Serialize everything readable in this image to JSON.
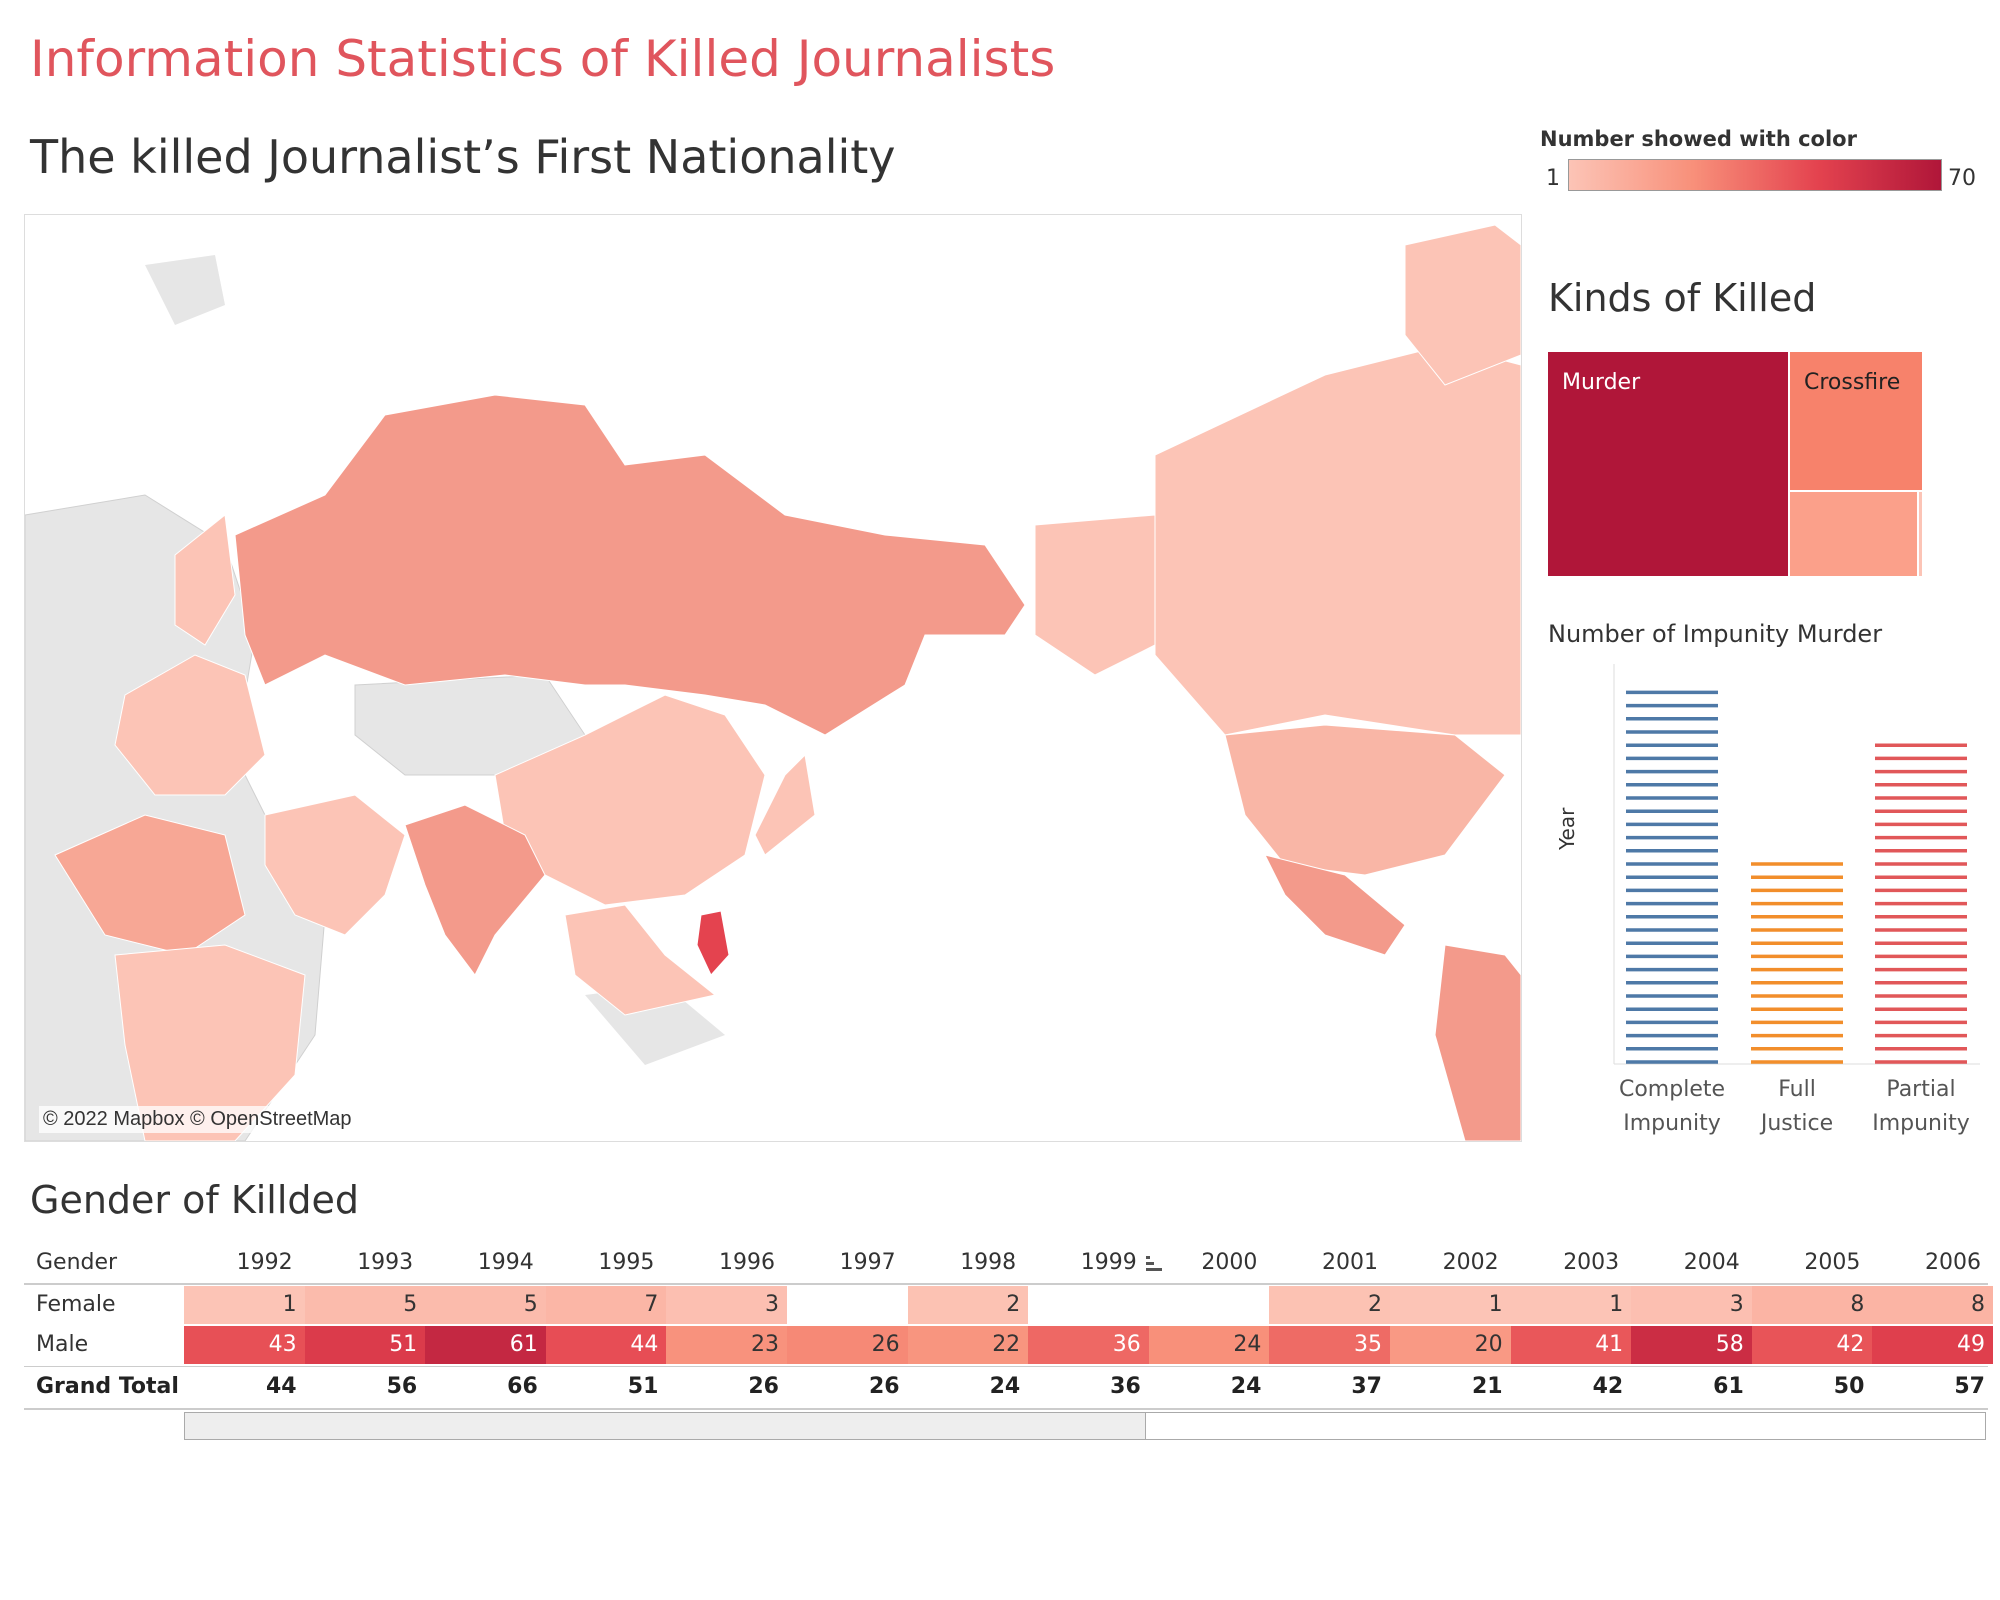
{
  "title": "Information Statistics of Killed Journalists",
  "map": {
    "title": "The killed Journalist’s First Nationality",
    "credit": "© 2022 Mapbox © OpenStreetMap"
  },
  "legend": {
    "title": "Number showed with color",
    "min_label": "1",
    "max_label": "70",
    "colors": [
      "#fcc4b6",
      "#f8907a",
      "#e4434f",
      "#b01639"
    ]
  },
  "kinds": {
    "title": "Kinds of Killed",
    "cells": [
      {
        "label": "Murder",
        "color": "#b01639",
        "text_color": "#ffffff"
      },
      {
        "label": "Crossfire",
        "color": "#f7826b",
        "text_color": "#222222"
      },
      {
        "label": "",
        "color": "#fba08a",
        "text_color": "#222222"
      },
      {
        "label": "",
        "color": "#fcc4b6",
        "text_color": "#222222"
      }
    ]
  },
  "impunity": {
    "title": "Number of Impunity Murder",
    "y_label": "Year",
    "categories": [
      {
        "line1": "Complete",
        "line2": "Impunity",
        "color": "#4e79a7",
        "count": 29
      },
      {
        "line1": "Full",
        "line2": "Justice",
        "color": "#f28e2b",
        "count": 16
      },
      {
        "line1": "Partial",
        "line2": "Impunity",
        "color": "#e15759",
        "count": 25
      }
    ]
  },
  "gender": {
    "title": "Gender of Killded",
    "header_label": "Gender",
    "years": [
      "1992",
      "1993",
      "1994",
      "1995",
      "1996",
      "1997",
      "1998",
      "1999",
      "2000",
      "2001",
      "2002",
      "2003",
      "2004",
      "2005",
      "2006"
    ],
    "rows": [
      {
        "label": "Female",
        "values": [
          "1",
          "5",
          "5",
          "7",
          "3",
          "",
          "2",
          "",
          "",
          "2",
          "1",
          "1",
          "3",
          "8",
          "8"
        ]
      },
      {
        "label": "Male",
        "values": [
          "43",
          "51",
          "61",
          "44",
          "23",
          "26",
          "22",
          "36",
          "24",
          "35",
          "20",
          "41",
          "58",
          "42",
          "49"
        ]
      }
    ],
    "total_label": "Grand Total",
    "totals": [
      "44",
      "56",
      "66",
      "51",
      "26",
      "26",
      "24",
      "36",
      "24",
      "37",
      "21",
      "42",
      "61",
      "50",
      "57"
    ]
  },
  "chart_data": [
    {
      "type": "treemap",
      "title": "Kinds of Killed",
      "labels": [
        "Murder",
        "Crossfire"
      ]
    },
    {
      "type": "bar",
      "title": "Number of Impunity Murder",
      "ylabel": "Year",
      "categories": [
        "Complete Impunity",
        "Full Justice",
        "Partial Impunity"
      ],
      "values": [
        29,
        16,
        25
      ]
    },
    {
      "type": "table",
      "title": "Gender of Killded",
      "columns": [
        "1992",
        "1993",
        "1994",
        "1995",
        "1996",
        "1997",
        "1998",
        "1999",
        "2000",
        "2001",
        "2002",
        "2003",
        "2004",
        "2005",
        "2006"
      ],
      "series": [
        {
          "name": "Female",
          "values": [
            1,
            5,
            5,
            7,
            3,
            null,
            2,
            null,
            null,
            2,
            1,
            1,
            3,
            8,
            8
          ]
        },
        {
          "name": "Male",
          "values": [
            43,
            51,
            61,
            44,
            23,
            26,
            22,
            36,
            24,
            35,
            20,
            41,
            58,
            42,
            49
          ]
        },
        {
          "name": "Grand Total",
          "values": [
            44,
            56,
            66,
            51,
            26,
            26,
            24,
            36,
            24,
            37,
            21,
            42,
            61,
            50,
            57
          ]
        }
      ]
    }
  ]
}
